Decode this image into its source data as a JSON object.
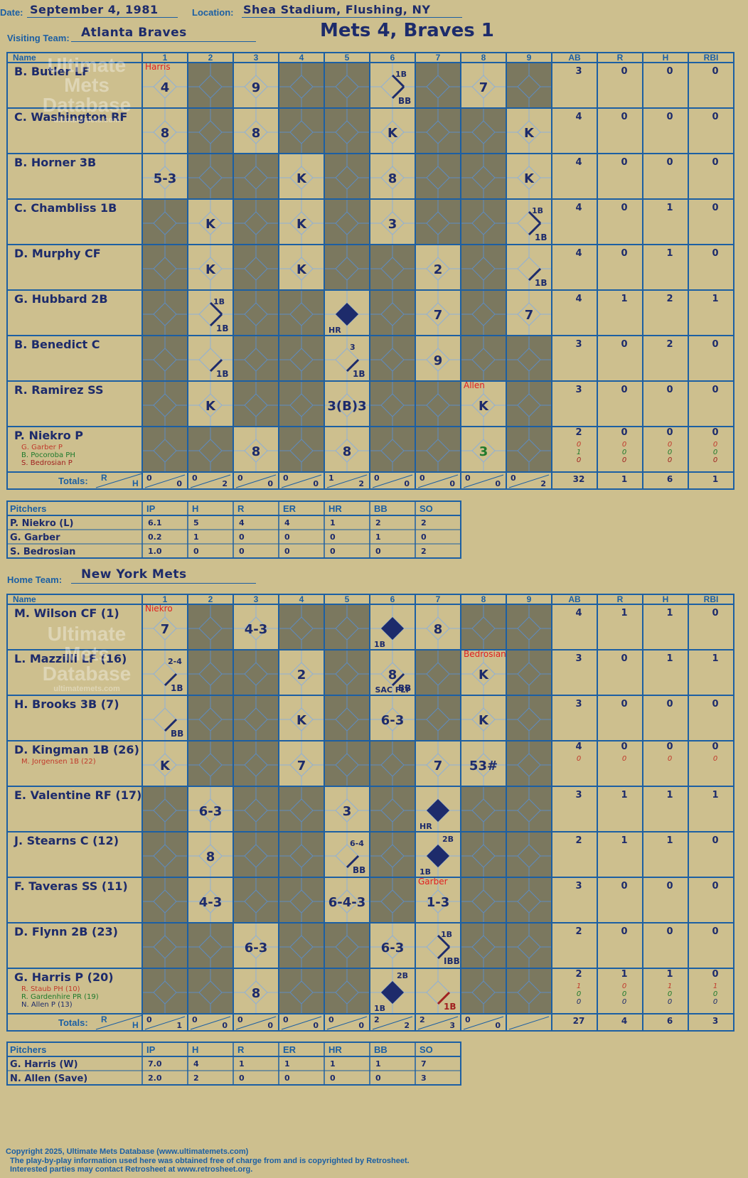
{
  "header": {
    "date_label": "Date:",
    "date": "September 4, 1981",
    "location_label": "Location:",
    "location": "Shea Stadium, Flushing, NY",
    "title": "Mets 4, Braves 1",
    "visiting_label": "Visiting Team:",
    "visiting_team": "Atlanta Braves",
    "home_label": "Home Team:",
    "home_team": "New York Mets"
  },
  "watermark": {
    "line1": "Ultimate",
    "line2": "Mets",
    "line3": "Database",
    "url": "ultimatemets.com"
  },
  "labels": {
    "name": "Name",
    "innings": [
      "1",
      "2",
      "3",
      "4",
      "5",
      "6",
      "7",
      "8",
      "9"
    ],
    "stats": [
      "AB",
      "R",
      "H",
      "RBI"
    ],
    "totals": "Totals:",
    "r": "R",
    "h": "H",
    "pitchers": "Pitchers",
    "pitch_cols": [
      "IP",
      "H",
      "R",
      "ER",
      "HR",
      "BB",
      "SO"
    ]
  },
  "away": {
    "batters": [
      {
        "name": "B. Butler LF",
        "stats": [
          "3",
          "0",
          "0",
          "0"
        ]
      },
      {
        "name": "C. Washington RF",
        "stats": [
          "4",
          "0",
          "0",
          "0"
        ]
      },
      {
        "name": "B. Horner 3B",
        "stats": [
          "4",
          "0",
          "0",
          "0"
        ]
      },
      {
        "name": "C. Chambliss 1B",
        "stats": [
          "4",
          "0",
          "1",
          "0"
        ]
      },
      {
        "name": "D. Murphy CF",
        "stats": [
          "4",
          "0",
          "1",
          "0"
        ]
      },
      {
        "name": "G. Hubbard 2B",
        "stats": [
          "4",
          "1",
          "2",
          "1"
        ]
      },
      {
        "name": "B. Benedict C",
        "stats": [
          "3",
          "0",
          "2",
          "0"
        ]
      },
      {
        "name": "R. Ramirez SS",
        "stats": [
          "3",
          "0",
          "0",
          "0"
        ]
      },
      {
        "name": "P. Niekro P",
        "stats": [
          "2",
          "0",
          "0",
          "0"
        ],
        "subs": [
          {
            "name": "G. Garber P",
            "color": "#c0392b",
            "stats": [
              "0",
              "0",
              "0",
              "0"
            ]
          },
          {
            "name": "B. Pocoroba PH",
            "color": "#1e7a2c",
            "stats": [
              "1",
              "0",
              "0",
              "0"
            ]
          },
          {
            "name": "S. Bedrosian P",
            "color": "#a02020",
            "stats": [
              "0",
              "0",
              "0",
              "0"
            ]
          }
        ]
      }
    ],
    "cells": [
      [
        [
          "4",
          "",
          "#1d2b6b"
        ],
        [
          "",
          "d"
        ],
        [
          "9",
          ""
        ],
        [
          "",
          "d"
        ],
        [
          "",
          "d"
        ],
        [
          "",
          "1BBB"
        ],
        [
          "",
          "d"
        ],
        [
          "7",
          ""
        ],
        [
          "",
          "d"
        ]
      ],
      [
        [
          "8",
          ""
        ],
        [
          "",
          "d"
        ],
        [
          "8",
          ""
        ],
        [
          "",
          "d"
        ],
        [
          "",
          "d"
        ],
        [
          "K",
          ""
        ],
        [
          "",
          "d"
        ],
        [
          "",
          "d"
        ],
        [
          "K",
          ""
        ]
      ],
      [
        [
          "5-3",
          ""
        ],
        [
          "",
          "d"
        ],
        [
          "",
          "d"
        ],
        [
          "K",
          ""
        ],
        [
          "",
          "d"
        ],
        [
          "8",
          ""
        ],
        [
          "",
          "d"
        ],
        [
          "",
          "d"
        ],
        [
          "K",
          ""
        ]
      ],
      [
        [
          "",
          "d"
        ],
        [
          "K",
          ""
        ],
        [
          "",
          "d"
        ],
        [
          "K",
          ""
        ],
        [
          "",
          "d"
        ],
        [
          "3",
          ""
        ],
        [
          "",
          "d"
        ],
        [
          "",
          "d"
        ],
        [
          "",
          "1B1B"
        ]
      ],
      [
        [
          "",
          "d"
        ],
        [
          "K",
          ""
        ],
        [
          "",
          "d"
        ],
        [
          "K",
          ""
        ],
        [
          "",
          "d"
        ],
        [
          "",
          "d"
        ],
        [
          "2",
          ""
        ],
        [
          "",
          "d"
        ],
        [
          "",
          "1B"
        ]
      ],
      [
        [
          "",
          "d"
        ],
        [
          "",
          "1B1B"
        ],
        [
          "",
          "d"
        ],
        [
          "",
          "d"
        ],
        [
          "",
          "HR"
        ],
        [
          "",
          "d"
        ],
        [
          "7",
          ""
        ],
        [
          "",
          "d"
        ],
        [
          "7",
          ""
        ]
      ],
      [
        [
          "",
          "d"
        ],
        [
          "",
          "1B"
        ],
        [
          "",
          "d"
        ],
        [
          "",
          "d"
        ],
        [
          "",
          "1B3"
        ],
        [
          "",
          "d"
        ],
        [
          "9",
          ""
        ],
        [
          "",
          "d"
        ],
        [
          "",
          "d"
        ]
      ],
      [
        [
          "",
          "d"
        ],
        [
          "K",
          ""
        ],
        [
          "",
          "d"
        ],
        [
          "",
          "d"
        ],
        [
          "3(B)3",
          ""
        ],
        [
          "",
          "d"
        ],
        [
          "",
          "d"
        ],
        [
          "K",
          ""
        ],
        [
          "",
          "d"
        ]
      ],
      [
        [
          "",
          "d"
        ],
        [
          "",
          "d"
        ],
        [
          "8",
          ""
        ],
        [
          "",
          "d"
        ],
        [
          "8",
          ""
        ],
        [
          "",
          "d"
        ],
        [
          "",
          "d"
        ],
        [
          "3",
          ""
        ],
        [
          "",
          "d"
        ]
      ]
    ],
    "notes": [
      {
        "text": "Harris",
        "row": 0,
        "col": 0,
        "color": "#e02020"
      },
      {
        "text": "Allen",
        "row": 7,
        "col": 7,
        "color": "#e02020"
      }
    ],
    "totals": [
      [
        "0",
        "0"
      ],
      [
        "0",
        "2"
      ],
      [
        "0",
        "0"
      ],
      [
        "0",
        "0"
      ],
      [
        "1",
        "2"
      ],
      [
        "0",
        "0"
      ],
      [
        "0",
        "0"
      ],
      [
        "0",
        "0"
      ],
      [
        "0",
        "2"
      ]
    ],
    "stat_totals": [
      "32",
      "1",
      "6",
      "1"
    ],
    "pitchers": [
      {
        "name": "P. Niekro (L)",
        "stats": [
          "6.1",
          "5",
          "4",
          "4",
          "1",
          "2",
          "2"
        ]
      },
      {
        "name": "G. Garber",
        "stats": [
          "0.2",
          "1",
          "0",
          "0",
          "0",
          "1",
          "0"
        ]
      },
      {
        "name": "S. Bedrosian",
        "stats": [
          "1.0",
          "0",
          "0",
          "0",
          "0",
          "0",
          "2"
        ]
      }
    ]
  },
  "home": {
    "batters": [
      {
        "name": "M. Wilson CF (1)",
        "stats": [
          "4",
          "1",
          "1",
          "0"
        ]
      },
      {
        "name": "L. Mazzilli LF (16)",
        "stats": [
          "3",
          "0",
          "1",
          "1"
        ]
      },
      {
        "name": "H. Brooks 3B (7)",
        "stats": [
          "3",
          "0",
          "0",
          "0"
        ]
      },
      {
        "name": "D. Kingman 1B (26)",
        "stats": [
          "4",
          "0",
          "0",
          "0"
        ],
        "subs": [
          {
            "name": "M. Jorgensen 1B (22)",
            "color": "#c0392b",
            "stats": [
              "0",
              "0",
              "0",
              "0"
            ]
          }
        ]
      },
      {
        "name": "E. Valentine RF (17)",
        "stats": [
          "3",
          "1",
          "1",
          "1"
        ]
      },
      {
        "name": "J. Stearns C (12)",
        "stats": [
          "2",
          "1",
          "1",
          "0"
        ]
      },
      {
        "name": "F. Taveras SS (11)",
        "stats": [
          "3",
          "0",
          "0",
          "0"
        ]
      },
      {
        "name": "D. Flynn 2B (23)",
        "stats": [
          "2",
          "0",
          "0",
          "0"
        ]
      },
      {
        "name": "G. Harris P (20)",
        "stats": [
          "2",
          "1",
          "1",
          "0"
        ],
        "subs": [
          {
            "name": "R. Staub PH (10)",
            "color": "#c0392b",
            "stats": [
              "1",
              "0",
              "1",
              "1"
            ]
          },
          {
            "name": "R. Gardenhire PR (19)",
            "color": "#1e7a2c",
            "stats": [
              "0",
              "0",
              "0",
              "0"
            ]
          },
          {
            "name": "N. Allen P (13)",
            "color": "#1d2b6b",
            "stats": [
              "0",
              "0",
              "0",
              "0"
            ]
          }
        ]
      }
    ],
    "cells": [
      [
        [
          "7",
          ""
        ],
        [
          "",
          "d"
        ],
        [
          "4-3",
          ""
        ],
        [
          "",
          "d"
        ],
        [
          "",
          "d"
        ],
        [
          "",
          "HR1B"
        ],
        [
          "8",
          ""
        ],
        [
          "",
          "d"
        ],
        [
          "",
          "d"
        ]
      ],
      [
        [
          "",
          "1B2-4"
        ],
        [
          "",
          "d"
        ],
        [
          "",
          "d"
        ],
        [
          "2",
          ""
        ],
        [
          "",
          "d"
        ],
        [
          "8",
          "SAC FLY"
        ],
        [
          "",
          "d"
        ],
        [
          "K",
          ""
        ],
        [
          "",
          "d"
        ]
      ],
      [
        [
          "",
          "BB"
        ],
        [
          "",
          "d"
        ],
        [
          "",
          "d"
        ],
        [
          "K",
          ""
        ],
        [
          "",
          "d"
        ],
        [
          "6-3",
          ""
        ],
        [
          "",
          "d"
        ],
        [
          "K",
          ""
        ],
        [
          "",
          "d"
        ]
      ],
      [
        [
          "K",
          ""
        ],
        [
          "",
          "d"
        ],
        [
          "",
          "d"
        ],
        [
          "7",
          ""
        ],
        [
          "",
          "d"
        ],
        [
          "",
          "d"
        ],
        [
          "7",
          ""
        ],
        [
          "53#",
          ""
        ],
        [
          "",
          "d"
        ]
      ],
      [
        [
          "",
          "d"
        ],
        [
          "6-3",
          ""
        ],
        [
          "",
          "d"
        ],
        [
          "",
          "d"
        ],
        [
          "3",
          ""
        ],
        [
          "",
          "d"
        ],
        [
          "",
          "HR"
        ],
        [
          "",
          "d"
        ],
        [
          "",
          "d"
        ]
      ],
      [
        [
          "",
          "d"
        ],
        [
          "8",
          ""
        ],
        [
          "",
          "d"
        ],
        [
          "",
          "d"
        ],
        [
          "",
          "BB6-4"
        ],
        [
          "",
          "d"
        ],
        [
          "",
          "2B1B"
        ],
        [
          "",
          "d"
        ],
        [
          "",
          "d"
        ]
      ],
      [
        [
          "",
          "d"
        ],
        [
          "4-3",
          ""
        ],
        [
          "",
          "d"
        ],
        [
          "",
          "d"
        ],
        [
          "6-4-3",
          ""
        ],
        [
          "",
          "d"
        ],
        [
          "1-3",
          ""
        ],
        [
          "",
          "d"
        ],
        [
          "",
          "d"
        ]
      ],
      [
        [
          "",
          "d"
        ],
        [
          "",
          "d"
        ],
        [
          "6-3",
          ""
        ],
        [
          "",
          "d"
        ],
        [
          "",
          "d"
        ],
        [
          "6-3",
          ""
        ],
        [
          "",
          "IBB1B"
        ],
        [
          "",
          "d"
        ],
        [
          "",
          "d"
        ]
      ],
      [
        [
          "",
          "d"
        ],
        [
          "",
          "d"
        ],
        [
          "8",
          ""
        ],
        [
          "",
          "d"
        ],
        [
          "",
          "d"
        ],
        [
          "",
          "2B1B"
        ],
        [
          "",
          "1Bred"
        ],
        [
          "",
          "d"
        ],
        [
          "",
          "d"
        ]
      ]
    ],
    "notes": [
      {
        "text": "Niekro",
        "row": 0,
        "col": 0,
        "color": "#e02020"
      },
      {
        "text": "Bedrosian",
        "row": 1,
        "col": 7,
        "color": "#e02020"
      },
      {
        "text": "Garber",
        "row": 6,
        "col": 6,
        "color": "#e02020"
      }
    ],
    "totals": [
      [
        "0",
        "1"
      ],
      [
        "0",
        "0"
      ],
      [
        "0",
        "0"
      ],
      [
        "0",
        "0"
      ],
      [
        "0",
        "0"
      ],
      [
        "2",
        "2"
      ],
      [
        "2",
        "3"
      ],
      [
        "0",
        "0"
      ],
      [
        "",
        ""
      ]
    ],
    "stat_totals": [
      "27",
      "4",
      "6",
      "3"
    ],
    "pitchers": [
      {
        "name": "G. Harris (W)",
        "stats": [
          "7.0",
          "4",
          "1",
          "1",
          "1",
          "1",
          "7"
        ]
      },
      {
        "name": "N. Allen (Save)",
        "stats": [
          "2.0",
          "2",
          "0",
          "0",
          "0",
          "0",
          "3"
        ]
      }
    ]
  },
  "footer": {
    "line1": "Copyright 2025, Ultimate Mets Database (www.ultimatemets.com)",
    "line2": "The play-by-play information used here was obtained free of charge from and is copyrighted by Retrosheet.",
    "line3": "Interested parties may contact Retrosheet at www.retrosheet.org."
  },
  "colors": {
    "paper": "#cdbf8e",
    "dark_cell": "#7b785f",
    "grid": "#1c5fa3",
    "ink": "#1d2b6b",
    "note": "#e02020"
  }
}
